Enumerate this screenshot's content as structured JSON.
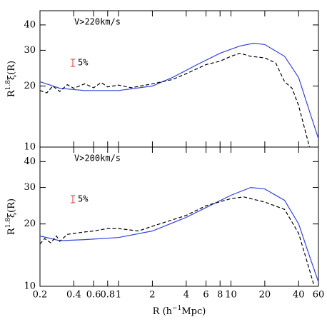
{
  "chart_data": [
    {
      "type": "line",
      "label": "V>220km/s",
      "errorbar_label": "5%",
      "errorbar_color": "#dd3333",
      "ylabel": [
        "R",
        "1.8",
        "ξ(R)"
      ],
      "xscale": "log",
      "yscale": "log",
      "xlim": [
        0.2,
        60
      ],
      "ylim": [
        10,
        47
      ],
      "yticks": [
        10,
        20,
        30,
        40
      ],
      "series": [
        {
          "color": "#3344dd",
          "linestyle": "solid",
          "x": [
            0.2,
            0.3,
            0.5,
            1,
            2,
            3,
            5,
            8,
            12,
            16,
            20,
            30,
            40,
            50,
            60
          ],
          "values": [
            21,
            19.5,
            19,
            19,
            20,
            22,
            25.5,
            29,
            31.5,
            32.5,
            32,
            28,
            22,
            15,
            11
          ]
        },
        {
          "color": "#000000",
          "linestyle": "dashed",
          "x": [
            0.2,
            0.23,
            0.26,
            0.3,
            0.35,
            0.4,
            0.5,
            0.6,
            0.7,
            0.8,
            1,
            1.3,
            2,
            3,
            4,
            6,
            8,
            10,
            12,
            15,
            20,
            25,
            30,
            35,
            40,
            45,
            50
          ],
          "values": [
            19,
            18.5,
            20,
            18.8,
            20.3,
            19.5,
            20.5,
            19.6,
            20.8,
            19.8,
            20.2,
            19.6,
            20.5,
            21.5,
            23,
            25.5,
            26.5,
            28,
            29,
            28,
            27.5,
            26,
            21,
            19.5,
            16,
            12.5,
            10
          ]
        }
      ]
    },
    {
      "type": "line",
      "label": "V>200km/s",
      "errorbar_label": "5%",
      "errorbar_color": "#dd3333",
      "ylabel": [
        "R",
        "1.8",
        "ξ(R)"
      ],
      "xlabel": [
        "R (h",
        "−1",
        "Mpc)"
      ],
      "xscale": "log",
      "yscale": "log",
      "xlim": [
        0.2,
        60
      ],
      "ylim": [
        10,
        47
      ],
      "yticks": [
        10,
        20,
        30,
        40
      ],
      "xticks": [
        0.2,
        0.4,
        0.6,
        0.8,
        1,
        2,
        4,
        6,
        8,
        10,
        20,
        40,
        60
      ],
      "series": [
        {
          "color": "#3344dd",
          "linestyle": "solid",
          "x": [
            0.2,
            0.3,
            0.5,
            1,
            2,
            4,
            6,
            10,
            15,
            20,
            30,
            40,
            50,
            60
          ],
          "values": [
            17.5,
            16.6,
            16.8,
            17.2,
            18.5,
            21.5,
            24,
            27.5,
            30,
            29.5,
            26,
            20,
            14,
            10.5
          ]
        },
        {
          "color": "#000000",
          "linestyle": "dashed",
          "x": [
            0.2,
            0.22,
            0.25,
            0.28,
            0.3,
            0.35,
            0.4,
            0.5,
            0.6,
            0.8,
            1,
            1.5,
            2,
            4,
            6,
            10,
            13,
            20,
            30,
            40,
            50,
            55
          ],
          "values": [
            16,
            17,
            16.2,
            17.5,
            16.5,
            17.8,
            18,
            18.3,
            18.5,
            19,
            19,
            18.5,
            19.5,
            22,
            24.5,
            26.5,
            27,
            25.5,
            23.5,
            18,
            12,
            10
          ]
        }
      ]
    }
  ]
}
